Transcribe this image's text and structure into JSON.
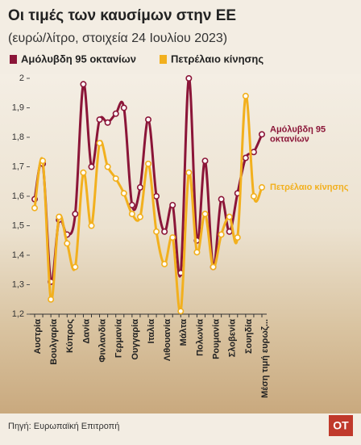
{
  "chart_data": {
    "type": "line",
    "title": "Οι τιμές των καυσίμων στην ΕΕ",
    "subtitle": "(ευρώ/λίτρο, στοιχεία 24 Ιουλίου 2023)",
    "categories": [
      "Αυστρία",
      null,
      "Βουλγαρία",
      null,
      "Κύπρος",
      null,
      "Δανία",
      null,
      "Φινλανδία",
      null,
      "Γερμανία",
      null,
      "Ουγγαρία",
      null,
      "Ιταλία",
      null,
      "Λιθουανία",
      null,
      "Μάλτα",
      null,
      "Πολωνία",
      null,
      "Ρουμανία",
      null,
      "Σλοβενία",
      null,
      "Σουηδία",
      null,
      "Μέση τιμή ευρωζ..."
    ],
    "series": [
      {
        "name": "Αμόλυβδη 95 οκτανίων",
        "color": "#8b1538",
        "values": [
          1.59,
          1.71,
          1.31,
          1.52,
          1.47,
          1.54,
          1.98,
          1.7,
          1.86,
          1.85,
          1.88,
          1.9,
          1.57,
          1.63,
          1.86,
          1.6,
          1.48,
          1.57,
          1.34,
          2.0,
          1.45,
          1.72,
          1.36,
          1.59,
          1.48,
          1.61,
          1.73,
          1.75,
          1.81
        ]
      },
      {
        "name": "Πετρέλαιο κίνησης",
        "color": "#f2b01e",
        "values": [
          1.56,
          1.72,
          1.25,
          1.53,
          1.44,
          1.36,
          1.68,
          1.5,
          1.78,
          1.7,
          1.66,
          1.61,
          1.54,
          1.53,
          1.71,
          1.48,
          1.37,
          1.46,
          1.21,
          1.68,
          1.41,
          1.54,
          1.36,
          1.47,
          1.53,
          1.46,
          1.94,
          1.6,
          1.63
        ]
      }
    ],
    "ylim": [
      1.2,
      2
    ],
    "yticks": [
      {
        "value": 1.2,
        "label": "1,2"
      },
      {
        "value": 1.3,
        "label": "1,3"
      },
      {
        "value": 1.4,
        "label": "1,4"
      },
      {
        "value": 1.5,
        "label": "1,5"
      },
      {
        "value": 1.6,
        "label": "1,6"
      },
      {
        "value": 1.7,
        "label": "1,7"
      },
      {
        "value": 1.8,
        "label": "1,8"
      },
      {
        "value": 1.9,
        "label": "1,9"
      },
      2
    ],
    "source": "Πηγή: Ευρωπαϊκή Επιτροπή",
    "logo": "OT"
  }
}
